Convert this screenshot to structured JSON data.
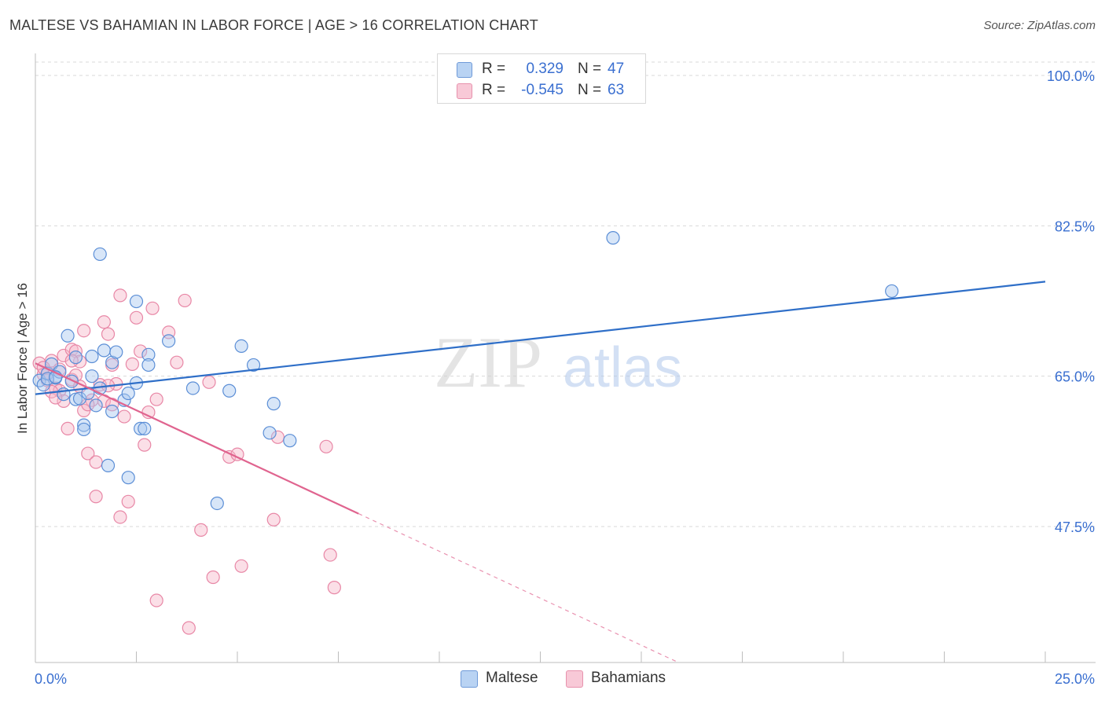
{
  "title": "MALTESE VS BAHAMIAN IN LABOR FORCE | AGE > 16 CORRELATION CHART",
  "source": "Source: ZipAtlas.com",
  "watermark": {
    "zip": "ZIP",
    "atlas": "atlas"
  },
  "legend": {
    "rows": [
      {
        "r_label": "R =",
        "r_value": "0.329",
        "n_label": "N =",
        "n_value": "47"
      },
      {
        "r_label": "R =",
        "r_value": "-0.545",
        "n_label": "N =",
        "n_value": "63"
      }
    ]
  },
  "bottom_legend": {
    "maltese": "Maltese",
    "bahamians": "Bahamians"
  },
  "colors": {
    "maltese_fill": "#a8c8f0",
    "maltese_stroke": "#5b8ed6",
    "maltese_line": "#2f6fc8",
    "bahamian_fill": "#f6b8ca",
    "bahamian_stroke": "#e887a6",
    "bahamian_line": "#e0648f",
    "tick_label": "#3a6fd0",
    "grid": "#d9d9d9"
  },
  "chart_data": {
    "type": "scatter",
    "title": "MALTESE VS BAHAMIAN IN LABOR FORCE | AGE > 16 CORRELATION CHART",
    "xlabel": "",
    "ylabel": "In Labor Force | Age > 16",
    "xlim": [
      0,
      25
    ],
    "ylim": [
      32.5,
      101.5
    ],
    "x_tick_labels": [
      {
        "value": 0,
        "label": "0.0%"
      },
      {
        "value": 25,
        "label": "25.0%"
      }
    ],
    "y_ticks": [
      {
        "value": 100,
        "label": "100.0%"
      },
      {
        "value": 82.5,
        "label": "82.5%"
      },
      {
        "value": 65,
        "label": "65.0%"
      },
      {
        "value": 47.5,
        "label": "47.5%"
      }
    ],
    "series": [
      {
        "name": "Maltese",
        "R": 0.329,
        "N": 47,
        "trend": {
          "x0": 0,
          "y0": 62.9,
          "x1": 25,
          "y1": 76.0,
          "dashed_from": null
        },
        "points": [
          [
            0.1,
            64.5
          ],
          [
            0.2,
            64.0
          ],
          [
            0.3,
            65.3
          ],
          [
            0.4,
            66.4
          ],
          [
            0.5,
            64.8
          ],
          [
            0.6,
            65.5
          ],
          [
            0.7,
            62.9
          ],
          [
            0.8,
            69.7
          ],
          [
            0.9,
            64.4
          ],
          [
            1.0,
            67.2
          ],
          [
            1.0,
            62.3
          ],
          [
            1.1,
            62.4
          ],
          [
            1.2,
            59.3
          ],
          [
            1.2,
            58.8
          ],
          [
            1.4,
            65.0
          ],
          [
            1.4,
            67.3
          ],
          [
            1.5,
            61.6
          ],
          [
            1.6,
            63.6
          ],
          [
            1.6,
            79.2
          ],
          [
            1.7,
            68.0
          ],
          [
            1.8,
            54.6
          ],
          [
            1.9,
            66.6
          ],
          [
            1.9,
            60.9
          ],
          [
            2.0,
            67.8
          ],
          [
            2.2,
            62.2
          ],
          [
            2.3,
            63.0
          ],
          [
            2.3,
            53.2
          ],
          [
            2.5,
            73.7
          ],
          [
            2.5,
            64.2
          ],
          [
            2.6,
            58.9
          ],
          [
            2.7,
            58.9
          ],
          [
            2.8,
            67.5
          ],
          [
            2.8,
            66.3
          ],
          [
            3.3,
            69.1
          ],
          [
            3.9,
            63.6
          ],
          [
            4.8,
            63.3
          ],
          [
            5.1,
            68.5
          ],
          [
            5.4,
            66.3
          ],
          [
            5.8,
            58.4
          ],
          [
            5.9,
            61.8
          ],
          [
            6.3,
            57.5
          ],
          [
            4.5,
            50.2
          ],
          [
            14.3,
            81.1
          ],
          [
            21.2,
            74.9
          ],
          [
            0.3,
            64.7
          ],
          [
            0.5,
            64.9
          ],
          [
            1.3,
            63.0
          ]
        ]
      },
      {
        "name": "Bahamians",
        "R": -0.545,
        "N": 63,
        "trend": {
          "x0": 0,
          "y0": 66.5,
          "x1": 16.0,
          "y1": 31.5,
          "dashed_from": 8.0
        },
        "points": [
          [
            0.1,
            66.5
          ],
          [
            0.2,
            65.2
          ],
          [
            0.3,
            65.4
          ],
          [
            0.3,
            64.5
          ],
          [
            0.4,
            66.8
          ],
          [
            0.5,
            63.6
          ],
          [
            0.6,
            65.8
          ],
          [
            0.6,
            63.3
          ],
          [
            0.7,
            67.4
          ],
          [
            0.7,
            62.1
          ],
          [
            0.8,
            58.9
          ],
          [
            0.9,
            64.6
          ],
          [
            0.9,
            68.1
          ],
          [
            1.0,
            65.1
          ],
          [
            1.0,
            67.9
          ],
          [
            1.1,
            66.7
          ],
          [
            1.1,
            63.8
          ],
          [
            1.2,
            61.0
          ],
          [
            1.2,
            70.3
          ],
          [
            1.3,
            56.0
          ],
          [
            1.4,
            62.2
          ],
          [
            1.5,
            51.0
          ],
          [
            1.5,
            55.0
          ],
          [
            1.6,
            64.0
          ],
          [
            1.7,
            62.1
          ],
          [
            1.7,
            71.3
          ],
          [
            1.8,
            69.9
          ],
          [
            1.9,
            61.7
          ],
          [
            1.9,
            66.3
          ],
          [
            2.0,
            64.1
          ],
          [
            2.1,
            48.6
          ],
          [
            2.1,
            74.4
          ],
          [
            2.2,
            60.3
          ],
          [
            2.3,
            50.4
          ],
          [
            2.4,
            66.4
          ],
          [
            2.5,
            71.8
          ],
          [
            2.6,
            67.9
          ],
          [
            2.7,
            57.0
          ],
          [
            2.9,
            72.9
          ],
          [
            3.0,
            62.3
          ],
          [
            3.0,
            38.9
          ],
          [
            3.3,
            70.1
          ],
          [
            3.5,
            66.6
          ],
          [
            3.7,
            73.8
          ],
          [
            3.8,
            35.7
          ],
          [
            4.1,
            47.1
          ],
          [
            4.3,
            64.3
          ],
          [
            4.4,
            41.6
          ],
          [
            4.8,
            55.6
          ],
          [
            5.0,
            55.9
          ],
          [
            5.1,
            42.9
          ],
          [
            5.9,
            48.3
          ],
          [
            6.0,
            57.9
          ],
          [
            7.2,
            56.8
          ],
          [
            7.3,
            44.2
          ],
          [
            7.4,
            40.4
          ],
          [
            0.4,
            63.2
          ],
          [
            0.9,
            66.8
          ],
          [
            1.8,
            63.9
          ],
          [
            2.8,
            60.8
          ],
          [
            0.2,
            66.0
          ],
          [
            1.3,
            61.7
          ],
          [
            0.5,
            62.5
          ]
        ]
      }
    ]
  }
}
